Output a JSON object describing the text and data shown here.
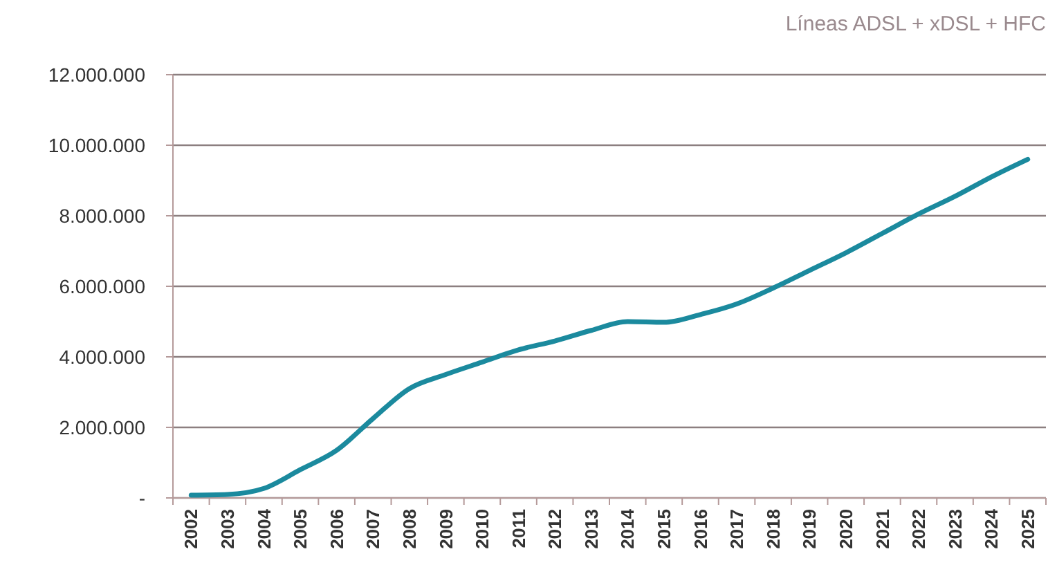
{
  "chart_data": {
    "type": "line",
    "title": "Líneas ADSL + xDSL + HFC",
    "categories": [
      "2002",
      "2003",
      "2004",
      "2005",
      "2006",
      "2007",
      "2008",
      "2009",
      "2010",
      "2011",
      "2012",
      "2013",
      "2014",
      "2015",
      "2016",
      "2017",
      "2018",
      "2019",
      "2020",
      "2021",
      "2022",
      "2023",
      "2024",
      "2025"
    ],
    "series": [
      {
        "color": "#1b8a9e",
        "values": [
          80000,
          100000,
          270000,
          800000,
          1350000,
          2250000,
          3100000,
          3500000,
          3850000,
          4200000,
          4450000,
          4750000,
          5000000,
          4980000,
          5200000,
          5500000,
          5950000,
          6450000,
          6950000,
          7500000,
          8050000,
          8550000,
          9100000,
          9600000
        ]
      }
    ],
    "ylim": [
      0,
      12000000
    ],
    "yticks": [
      {
        "value": 0,
        "label": "-"
      },
      {
        "value": 2000000,
        "label": "2.000.000"
      },
      {
        "value": 4000000,
        "label": "4.000.000"
      },
      {
        "value": 6000000,
        "label": "6.000.000"
      },
      {
        "value": 8000000,
        "label": "8.000.000"
      },
      {
        "value": 10000000,
        "label": "10.000.000"
      },
      {
        "value": 12000000,
        "label": "12.000.000"
      }
    ],
    "grid": "y",
    "marker": "none",
    "line_style": "solid"
  }
}
